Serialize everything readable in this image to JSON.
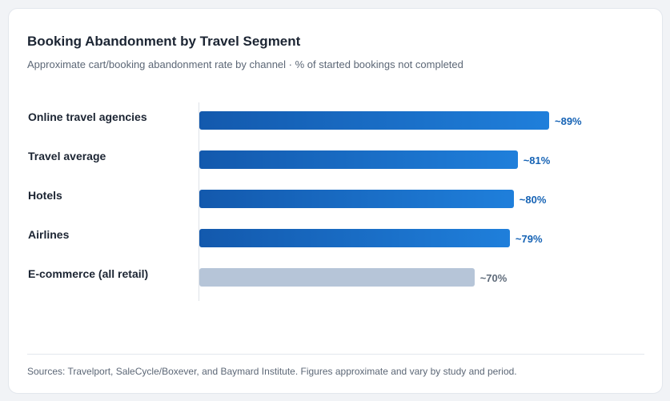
{
  "card": {
    "title": "Booking Abandonment by Travel Segment",
    "subtitle": "Approximate cart/booking abandonment rate by channel · % of started bookings not completed",
    "source": "Sources: Travelport, SaleCycle/Boxever, and Baymard Institute. Figures approximate and vary by study and period."
  },
  "colors": {
    "highlight_start": "#1359ad",
    "highlight_end": "#1f7fdb",
    "muted": "#b6c5d8",
    "highlight_label": "#1663b5",
    "muted_label": "#5f6b7a"
  },
  "chart_data": {
    "type": "bar",
    "orientation": "horizontal",
    "title": "Booking Abandonment by Travel Segment",
    "subtitle": "Approximate cart/booking abandonment rate by channel · % of started bookings not completed",
    "categories": [
      "Online travel agencies",
      "Travel average",
      "Hotels",
      "Airlines",
      "E-commerce (all retail)"
    ],
    "values": [
      89,
      81,
      80,
      79,
      70
    ],
    "value_labels": [
      "~89%",
      "~81%",
      "~80%",
      "~79%",
      "~70%"
    ],
    "highlighted": [
      true,
      true,
      true,
      true,
      false
    ],
    "xlabel": "",
    "ylabel": "",
    "xlim": [
      0,
      100
    ],
    "grid": false,
    "legend": "none"
  }
}
